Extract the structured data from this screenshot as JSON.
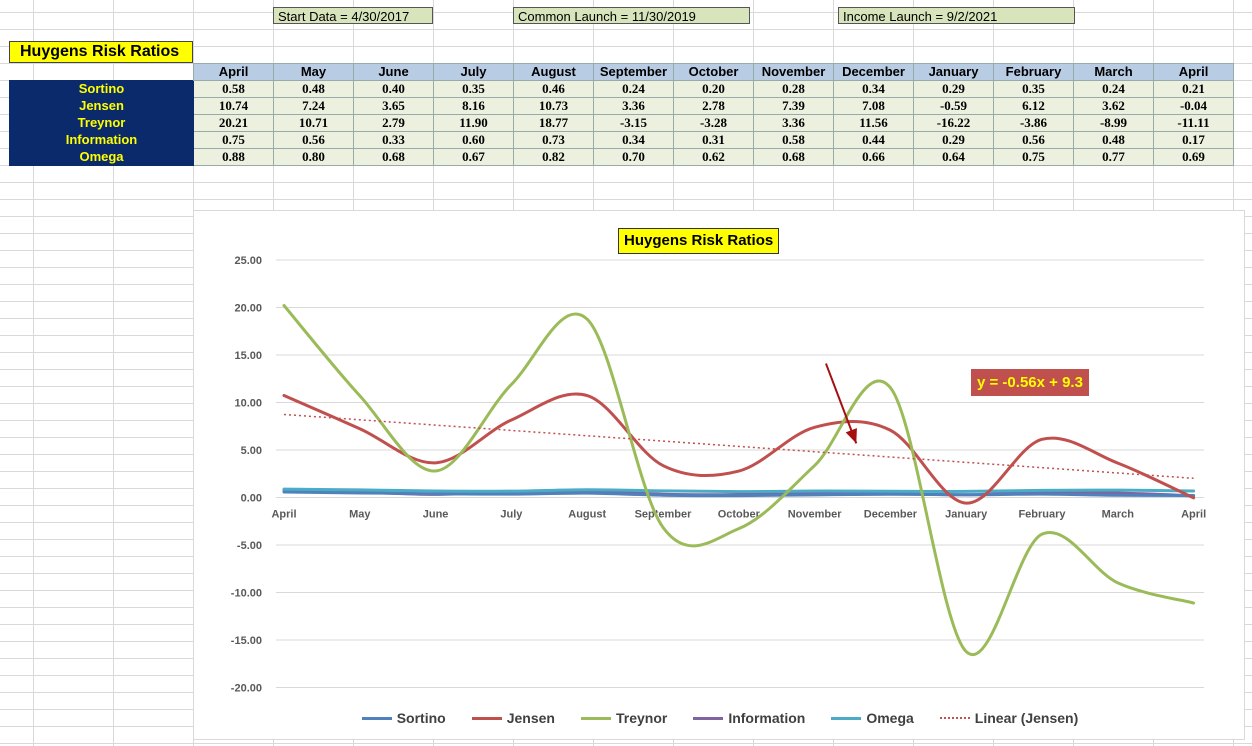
{
  "header_boxes": {
    "start": "Start Data = 4/30/2017",
    "common": "Common Launch = 11/30/2019",
    "income": "Income Launch = 9/2/2021"
  },
  "table": {
    "title": "Huygens Risk Ratios",
    "months": [
      "April",
      "May",
      "June",
      "July",
      "August",
      "September",
      "October",
      "November",
      "December",
      "January",
      "February",
      "March",
      "April"
    ],
    "rows": [
      {
        "label": "Sortino",
        "values": [
          "0.58",
          "0.48",
          "0.40",
          "0.35",
          "0.46",
          "0.24",
          "0.20",
          "0.28",
          "0.34",
          "0.29",
          "0.35",
          "0.24",
          "0.21"
        ]
      },
      {
        "label": "Jensen",
        "values": [
          "10.74",
          "7.24",
          "3.65",
          "8.16",
          "10.73",
          "3.36",
          "2.78",
          "7.39",
          "7.08",
          "-0.59",
          "6.12",
          "3.62",
          "-0.04"
        ]
      },
      {
        "label": "Treynor",
        "values": [
          "20.21",
          "10.71",
          "2.79",
          "11.90",
          "18.77",
          "-3.15",
          "-3.28",
          "3.36",
          "11.56",
          "-16.22",
          "-3.86",
          "-8.99",
          "-11.11"
        ]
      },
      {
        "label": "Information",
        "values": [
          "0.75",
          "0.56",
          "0.33",
          "0.60",
          "0.73",
          "0.34",
          "0.31",
          "0.58",
          "0.44",
          "0.29",
          "0.56",
          "0.48",
          "0.17"
        ]
      },
      {
        "label": "Omega",
        "values": [
          "0.88",
          "0.80",
          "0.68",
          "0.67",
          "0.82",
          "0.70",
          "0.62",
          "0.68",
          "0.66",
          "0.64",
          "0.75",
          "0.77",
          "0.69"
        ]
      }
    ]
  },
  "chart_data": {
    "type": "line",
    "title": "Huygens Risk Ratios",
    "categories": [
      "April",
      "May",
      "June",
      "July",
      "August",
      "September",
      "October",
      "November",
      "December",
      "January",
      "February",
      "March",
      "April"
    ],
    "ylim": [
      -20,
      25
    ],
    "yticks": [
      "25.00",
      "20.00",
      "15.00",
      "10.00",
      "5.00",
      "0.00",
      "-5.00",
      "-10.00",
      "-15.00",
      "-20.00"
    ],
    "grid": true,
    "legend_position": "bottom",
    "series": [
      {
        "name": "Sortino",
        "color": "#4f81bd",
        "values": [
          0.58,
          0.48,
          0.4,
          0.35,
          0.46,
          0.24,
          0.2,
          0.28,
          0.34,
          0.29,
          0.35,
          0.24,
          0.21
        ]
      },
      {
        "name": "Jensen",
        "color": "#c0504d",
        "values": [
          10.74,
          7.24,
          3.65,
          8.16,
          10.73,
          3.36,
          2.78,
          7.39,
          7.08,
          -0.59,
          6.12,
          3.62,
          -0.04
        ]
      },
      {
        "name": "Treynor",
        "color": "#9bbb59",
        "values": [
          20.21,
          10.71,
          2.79,
          11.9,
          18.77,
          -3.15,
          -3.28,
          3.36,
          11.56,
          -16.22,
          -3.86,
          -8.99,
          -11.11
        ]
      },
      {
        "name": "Information",
        "color": "#8064a2",
        "values": [
          0.75,
          0.56,
          0.33,
          0.6,
          0.73,
          0.34,
          0.31,
          0.58,
          0.44,
          0.29,
          0.56,
          0.48,
          0.17
        ]
      },
      {
        "name": "Omega",
        "color": "#4bacc6",
        "values": [
          0.88,
          0.8,
          0.68,
          0.67,
          0.82,
          0.7,
          0.62,
          0.68,
          0.66,
          0.64,
          0.75,
          0.77,
          0.69
        ]
      }
    ],
    "trendline": {
      "name": "Linear (Jensen)",
      "color": "#c0504d",
      "slope": -0.56,
      "intercept": 9.3,
      "label": "y = -0.56x + 9.3"
    },
    "annotation": {
      "type": "arrow",
      "color": "#a50f0f",
      "from": {
        "x": 7.15,
        "y": 14.1
      },
      "to": {
        "x": 7.55,
        "y": 5.7
      }
    }
  }
}
